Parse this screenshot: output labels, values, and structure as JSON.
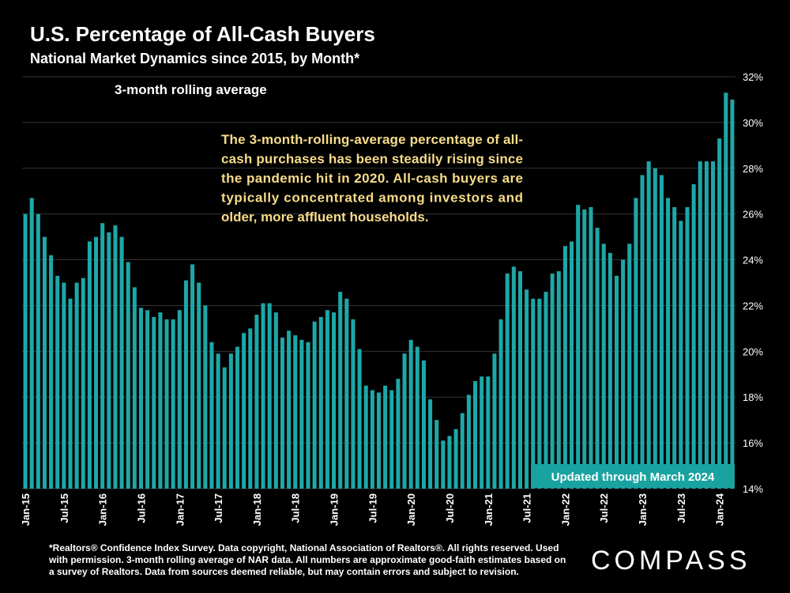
{
  "header": {
    "title": "U.S. Percentage of All-Cash Buyers",
    "subtitle": "National Market Dynamics since 2015, by Month*"
  },
  "chart_data": {
    "type": "bar",
    "categories": [
      "Jan-15",
      "Feb-15",
      "Mar-15",
      "Apr-15",
      "May-15",
      "Jun-15",
      "Jul-15",
      "Aug-15",
      "Sep-15",
      "Oct-15",
      "Nov-15",
      "Dec-15",
      "Jan-16",
      "Feb-16",
      "Mar-16",
      "Apr-16",
      "May-16",
      "Jun-16",
      "Jul-16",
      "Aug-16",
      "Sep-16",
      "Oct-16",
      "Nov-16",
      "Dec-16",
      "Jan-17",
      "Feb-17",
      "Mar-17",
      "Apr-17",
      "May-17",
      "Jun-17",
      "Jul-17",
      "Aug-17",
      "Sep-17",
      "Oct-17",
      "Nov-17",
      "Dec-17",
      "Jan-18",
      "Feb-18",
      "Mar-18",
      "Apr-18",
      "May-18",
      "Jun-18",
      "Jul-18",
      "Aug-18",
      "Sep-18",
      "Oct-18",
      "Nov-18",
      "Dec-18",
      "Jan-19",
      "Feb-19",
      "Mar-19",
      "Apr-19",
      "May-19",
      "Jun-19",
      "Jul-19",
      "Aug-19",
      "Sep-19",
      "Oct-19",
      "Nov-19",
      "Dec-19",
      "Jan-20",
      "Feb-20",
      "Mar-20",
      "Apr-20",
      "May-20",
      "Jun-20",
      "Jul-20",
      "Aug-20",
      "Sep-20",
      "Oct-20",
      "Nov-20",
      "Dec-20",
      "Jan-21",
      "Feb-21",
      "Mar-21",
      "Apr-21",
      "May-21",
      "Jun-21",
      "Jul-21",
      "Aug-21",
      "Sep-21",
      "Oct-21",
      "Nov-21",
      "Dec-21",
      "Jan-22",
      "Feb-22",
      "Mar-22",
      "Apr-22",
      "May-22",
      "Jun-22",
      "Jul-22",
      "Aug-22",
      "Sep-22",
      "Oct-22",
      "Nov-22",
      "Dec-22",
      "Jan-23",
      "Feb-23",
      "Mar-23",
      "Apr-23",
      "May-23",
      "Jun-23",
      "Jul-23",
      "Aug-23",
      "Sep-23",
      "Oct-23",
      "Nov-23",
      "Dec-23",
      "Jan-24",
      "Feb-24",
      "Mar-24"
    ],
    "values": [
      26.0,
      26.7,
      26.0,
      25.0,
      24.2,
      23.3,
      23.0,
      22.3,
      23.0,
      23.2,
      24.8,
      25.0,
      25.6,
      25.2,
      25.5,
      25.0,
      23.9,
      22.8,
      21.9,
      21.8,
      21.5,
      21.7,
      21.4,
      21.4,
      21.8,
      23.1,
      23.8,
      23.0,
      22.0,
      20.4,
      19.9,
      19.3,
      19.9,
      20.2,
      20.8,
      21.0,
      21.6,
      22.1,
      22.1,
      21.7,
      20.6,
      20.9,
      20.7,
      20.5,
      20.4,
      21.3,
      21.5,
      21.8,
      21.7,
      22.6,
      22.3,
      21.4,
      20.1,
      18.5,
      18.3,
      18.2,
      18.5,
      18.3,
      18.8,
      19.9,
      20.5,
      20.2,
      19.6,
      17.9,
      17.0,
      16.1,
      16.3,
      16.6,
      17.3,
      18.1,
      18.7,
      18.9,
      18.9,
      19.9,
      21.4,
      23.4,
      23.7,
      23.5,
      22.7,
      22.3,
      22.3,
      22.6,
      23.4,
      23.5,
      24.6,
      24.8,
      26.4,
      26.2,
      26.3,
      25.4,
      24.7,
      24.3,
      23.3,
      24.0,
      24.7,
      26.7,
      27.7,
      28.3,
      28.0,
      27.7,
      26.7,
      26.3,
      25.7,
      26.3,
      27.3,
      28.3,
      28.3,
      28.3,
      29.3,
      31.3,
      31.0
    ],
    "x_tick_labels": [
      "Jan-15",
      "Jul-15",
      "Jan-16",
      "Jul-16",
      "Jan-17",
      "Jul-17",
      "Jan-18",
      "Jul-18",
      "Jan-19",
      "Jul-19",
      "Jan-20",
      "Jul-20",
      "Jan-21",
      "Jul-21",
      "Jan-22",
      "Jul-22",
      "Jan-23",
      "Jul-23",
      "Jan-24"
    ],
    "y_tick_labels": [
      "14%",
      "16%",
      "18%",
      "20%",
      "22%",
      "24%",
      "26%",
      "28%",
      "30%",
      "32%"
    ],
    "ylim": [
      14,
      32
    ],
    "grid": true,
    "series_label": "3-month rolling average",
    "annotation": "The 3-month-rolling-average percentage of all-cash purchases has been steadily rising since the pandemic hit in 2020. All-cash buyers are typically concentrated among investors and older, more affluent households.",
    "badge": "Updated through March 2024",
    "colors": {
      "bar": "#1EA7A7",
      "annotation": "#F8DC8A",
      "badge_bg": "#19A3A0",
      "grid": "#333333"
    }
  },
  "footer": {
    "footnote": "*Realtors® Confidence Index Survey. Data copyright, National Association of Realtors®. All rights reserved. Used with permission. 3-month rolling average of NAR data. All numbers are approximate good-faith estimates based on a survey of Realtors. Data from sources deemed reliable, but may contain errors and subject to revision.",
    "logo": "COMPASS"
  }
}
